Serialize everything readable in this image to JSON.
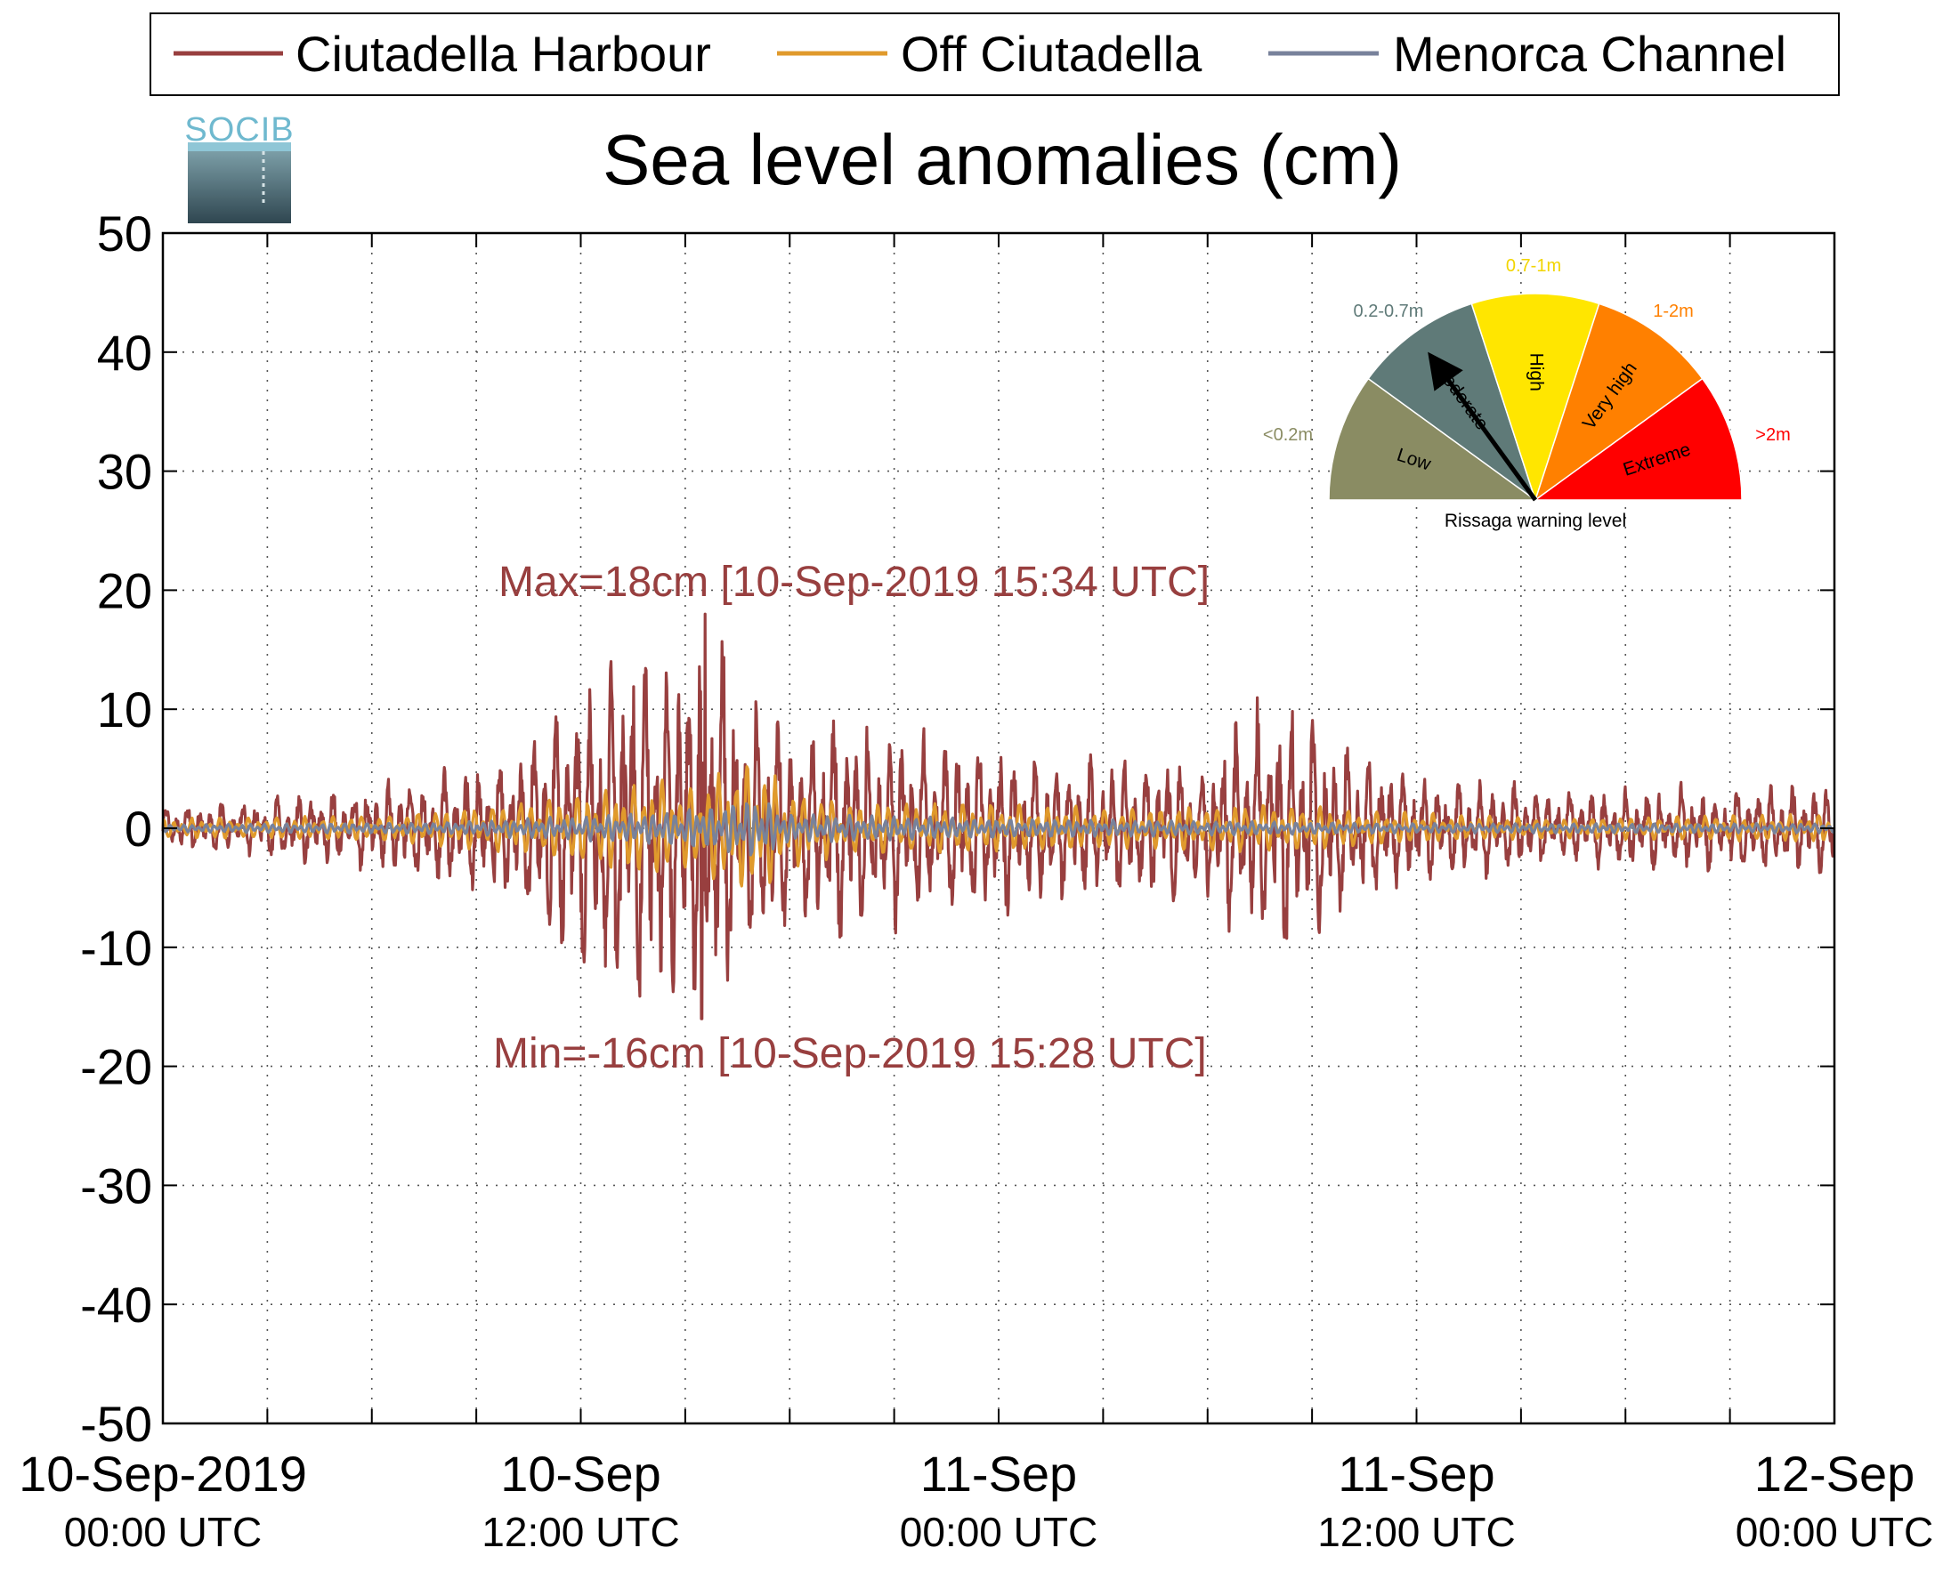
{
  "chart_data": {
    "type": "line",
    "title": "Sea level anomalies (cm)",
    "ylim": [
      -50,
      50
    ],
    "yticks": [
      -50,
      -40,
      -30,
      -20,
      -10,
      0,
      10,
      20,
      30,
      40,
      50
    ],
    "xlim_hours": [
      0,
      48
    ],
    "xticks": [
      {
        "line1": "10-Sep-2019",
        "line2": "00:00 UTC"
      },
      {
        "line1": "10-Sep",
        "line2": "12:00 UTC"
      },
      {
        "line1": "11-Sep",
        "line2": "00:00 UTC"
      },
      {
        "line1": "11-Sep",
        "line2": "12:00 UTC"
      },
      {
        "line1": "12-Sep",
        "line2": "00:00 UTC"
      }
    ],
    "grid": true,
    "legend_position": "top",
    "series": [
      {
        "name": "Ciutadella Harbour",
        "color": "#983f3f",
        "envelope": [
          [
            0,
            1.5
          ],
          [
            3,
            2
          ],
          [
            6,
            3
          ],
          [
            8,
            4
          ],
          [
            10,
            5
          ],
          [
            11,
            8
          ],
          [
            12,
            10
          ],
          [
            13,
            13
          ],
          [
            14,
            12
          ],
          [
            15,
            14
          ],
          [
            16,
            14
          ],
          [
            17,
            9
          ],
          [
            18,
            7
          ],
          [
            19,
            8
          ],
          [
            21,
            7
          ],
          [
            23,
            6
          ],
          [
            24,
            6
          ],
          [
            26,
            5
          ],
          [
            28,
            5
          ],
          [
            30,
            5
          ],
          [
            31,
            8
          ],
          [
            32,
            9
          ],
          [
            33,
            8
          ],
          [
            34,
            6
          ],
          [
            36,
            4
          ],
          [
            40,
            2.5
          ],
          [
            44,
            3
          ],
          [
            48,
            3
          ]
        ],
        "max": {
          "value": 18,
          "hour": 15.57
        },
        "min": {
          "value": -16,
          "hour": 15.47
        }
      },
      {
        "name": "Off Ciutadella",
        "color": "#e09a2c",
        "envelope": [
          [
            0,
            0.8
          ],
          [
            6,
            1
          ],
          [
            10,
            2
          ],
          [
            12,
            3
          ],
          [
            14,
            4
          ],
          [
            15,
            3.5
          ],
          [
            17,
            6
          ],
          [
            18,
            3
          ],
          [
            20,
            2
          ],
          [
            24,
            2
          ],
          [
            28,
            1.6
          ],
          [
            32,
            2
          ],
          [
            36,
            1.2
          ],
          [
            40,
            0.8
          ],
          [
            48,
            1.2
          ]
        ]
      },
      {
        "name": "Menorca Channel",
        "color": "#78829b",
        "envelope": [
          [
            0,
            0.3
          ],
          [
            8,
            0.5
          ],
          [
            12,
            1
          ],
          [
            14,
            1.3
          ],
          [
            16,
            2
          ],
          [
            17,
            2.6
          ],
          [
            18,
            1.2
          ],
          [
            24,
            0.8
          ],
          [
            30,
            0.6
          ],
          [
            36,
            0.4
          ],
          [
            48,
            0.4
          ]
        ]
      }
    ],
    "annotations": [
      {
        "text": "Max=18cm [10-Sep-2019 15:34 UTC]",
        "color": "#983f3f"
      },
      {
        "text": "Min=-16cm [10-Sep-2019 15:28 UTC]",
        "color": "#983f3f"
      }
    ]
  },
  "logo": {
    "text": "SOCIB"
  },
  "gauge": {
    "title": "Rissaga warning level",
    "current_level": "Moderate",
    "segments": [
      {
        "label": "Low",
        "range": "<0.2m",
        "color": "#8a8c63",
        "range_color": "#8a8c63"
      },
      {
        "label": "Moderate",
        "range": "0.2-0.7m",
        "color": "#5f7a78",
        "range_color": "#5f7a78"
      },
      {
        "label": "High",
        "range": "0.7-1m",
        "color": "#ffe600",
        "range_color": "#f2d500"
      },
      {
        "label": "Very high",
        "range": "1-2m",
        "color": "#ff8000",
        "range_color": "#ff8000"
      },
      {
        "label": "Extreme",
        "range": ">2m",
        "color": "#ff0000",
        "range_color": "#ff0000"
      }
    ]
  }
}
